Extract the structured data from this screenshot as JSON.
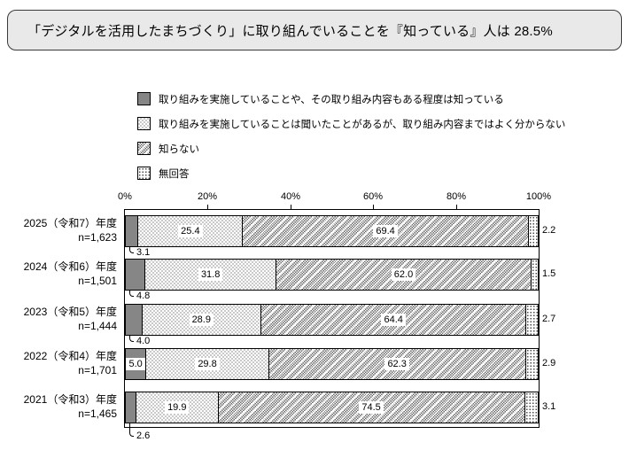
{
  "title": "「デジタルを活用したまちづくり」に取り組んでいることを『知っている』人は 28.5%",
  "legend": {
    "items": [
      {
        "label": "取り組みを実施していることや、その取り組み内容もある程度は知っている",
        "swatch": "solid-gray"
      },
      {
        "label": "取り組みを実施していることは聞いたことがあるが、取り組み内容まではよく分からない",
        "swatch": "light-checker"
      },
      {
        "label": "知らない",
        "swatch": "diagonal-hatch"
      },
      {
        "label": "無回答",
        "swatch": "sparse-dots"
      }
    ]
  },
  "chart_data": {
    "type": "bar",
    "subtype": "horizontal-stacked-100percent",
    "unit": "%",
    "xlim": [
      0,
      100
    ],
    "x_ticks": [
      "0%",
      "20%",
      "40%",
      "60%",
      "80%",
      "100%"
    ],
    "grid": false,
    "legend_position": "top",
    "series": [
      "取り組みを実施していることや、その取り組み内容もある程度は知っている",
      "取り組みを実施していることは聞いたことがあるが、取り組み内容まではよく分からない",
      "知らない",
      "無回答"
    ],
    "rows": [
      {
        "category": "2025（令和7）年度",
        "n_label": "n=1,623",
        "values": [
          3.1,
          25.4,
          69.4,
          2.2
        ],
        "value_labels": [
          "3.1",
          "25.4",
          "69.4",
          "2.2"
        ],
        "first_value_label_position": "below-bar"
      },
      {
        "category": "2024（令和6）年度",
        "n_label": "n=1,501",
        "values": [
          4.8,
          31.8,
          62.0,
          1.5
        ],
        "value_labels": [
          "4.8",
          "31.8",
          "62.0",
          "1.5"
        ],
        "first_value_label_position": "below-bar"
      },
      {
        "category": "2023（令和5）年度",
        "n_label": "n=1,444",
        "values": [
          4.0,
          28.9,
          64.4,
          2.7
        ],
        "value_labels": [
          "4.0",
          "28.9",
          "64.4",
          "2.7"
        ],
        "first_value_label_position": "below-bar"
      },
      {
        "category": "2022（令和4）年度",
        "n_label": "n=1,701",
        "values": [
          5.0,
          29.8,
          62.3,
          2.9
        ],
        "value_labels": [
          "5.0",
          "29.8",
          "62.3",
          "2.9"
        ],
        "first_value_label_position": "inside-bar"
      },
      {
        "category": "2021（令和3）年度",
        "n_label": "n=1,465",
        "values": [
          2.6,
          19.9,
          74.5,
          3.1
        ],
        "value_labels": [
          "2.6",
          "19.9",
          "74.5",
          "3.1"
        ],
        "first_value_label_position": "below-bar"
      }
    ]
  },
  "colors": {
    "segment1_fill": "#868686",
    "bar_border": "#000000",
    "title_box_bg": "#e9e9e9",
    "title_box_border": "#3a3a3a",
    "text": "#000000"
  }
}
